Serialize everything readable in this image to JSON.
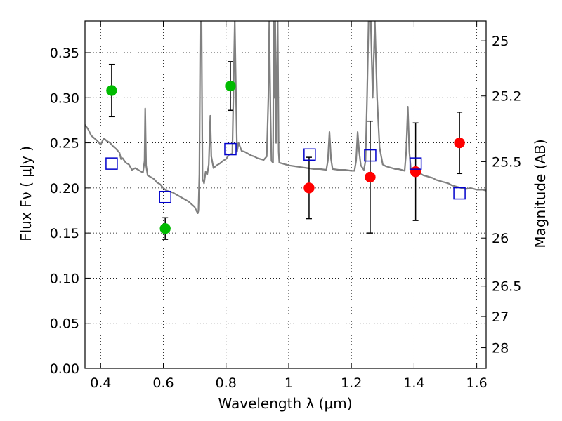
{
  "chart_data": {
    "type": "scatter",
    "title": "",
    "xlabel": "Wavelength  λ (μm)",
    "ylabel": "Flux  Fν  ( μJy )",
    "y2label": "Magnitude (AB)",
    "xlim": [
      0.35,
      1.63
    ],
    "ylim": [
      0.0,
      0.385
    ],
    "grid": true,
    "x_ticks": [
      0.4,
      0.6,
      0.8,
      1.0,
      1.2,
      1.4,
      1.6
    ],
    "x_tick_labels": [
      "0.4",
      "0.6",
      "0.8",
      "1",
      "1.2",
      "1.4",
      "1.6"
    ],
    "y_ticks": [
      0.0,
      0.05,
      0.1,
      0.15,
      0.2,
      0.25,
      0.3,
      0.35
    ],
    "y_tick_labels": [
      "0.00",
      "0.05",
      "0.10",
      "0.15",
      "0.20",
      "0.25",
      "0.30",
      "0.35"
    ],
    "y2_ticks": [
      {
        "label": "25",
        "flux": 0.3631
      },
      {
        "label": "25.2",
        "flux": 0.302
      },
      {
        "label": "25.5",
        "flux": 0.2291
      },
      {
        "label": "26",
        "flux": 0.1445
      },
      {
        "label": "26.5",
        "flux": 0.0912
      },
      {
        "label": "27",
        "flux": 0.0575
      },
      {
        "label": "28",
        "flux": 0.0229
      }
    ],
    "series": [
      {
        "marker": "circle",
        "color": "#00bb00",
        "points": [
          {
            "x": 0.435,
            "y": 0.308,
            "err": 0.029
          },
          {
            "x": 0.606,
            "y": 0.155,
            "err": 0.012
          },
          {
            "x": 0.814,
            "y": 0.313,
            "err": 0.027
          }
        ]
      },
      {
        "marker": "circle",
        "color": "#ff0000",
        "points": [
          {
            "x": 1.065,
            "y": 0.2,
            "err": 0.034
          },
          {
            "x": 1.26,
            "y": 0.212,
            "err": 0.062
          },
          {
            "x": 1.405,
            "y": 0.218,
            "err": 0.054
          },
          {
            "x": 1.545,
            "y": 0.25,
            "err": 0.034
          }
        ]
      },
      {
        "marker": "open-square",
        "color": "#0000cc",
        "points": [
          {
            "x": 0.435,
            "y": 0.227
          },
          {
            "x": 0.606,
            "y": 0.19
          },
          {
            "x": 0.814,
            "y": 0.243
          },
          {
            "x": 1.067,
            "y": 0.237
          },
          {
            "x": 1.26,
            "y": 0.236
          },
          {
            "x": 1.405,
            "y": 0.227
          },
          {
            "x": 1.545,
            "y": 0.194
          }
        ]
      }
    ],
    "model_spectrum": {
      "color": "#808080",
      "points": [
        [
          0.35,
          0.27
        ],
        [
          0.36,
          0.265
        ],
        [
          0.37,
          0.258
        ],
        [
          0.38,
          0.255
        ],
        [
          0.39,
          0.252
        ],
        [
          0.4,
          0.248
        ],
        [
          0.41,
          0.255
        ],
        [
          0.42,
          0.252
        ],
        [
          0.43,
          0.25
        ],
        [
          0.44,
          0.246
        ],
        [
          0.45,
          0.243
        ],
        [
          0.46,
          0.239
        ],
        [
          0.465,
          0.232
        ],
        [
          0.47,
          0.233
        ],
        [
          0.48,
          0.228
        ],
        [
          0.49,
          0.226
        ],
        [
          0.5,
          0.22
        ],
        [
          0.51,
          0.222
        ],
        [
          0.52,
          0.22
        ],
        [
          0.53,
          0.218
        ],
        [
          0.535,
          0.217
        ],
        [
          0.54,
          0.23
        ],
        [
          0.542,
          0.288
        ],
        [
          0.545,
          0.225
        ],
        [
          0.55,
          0.214
        ],
        [
          0.56,
          0.212
        ],
        [
          0.57,
          0.21
        ],
        [
          0.58,
          0.206
        ],
        [
          0.59,
          0.204
        ],
        [
          0.6,
          0.2
        ],
        [
          0.61,
          0.197
        ],
        [
          0.62,
          0.196
        ],
        [
          0.63,
          0.195
        ],
        [
          0.64,
          0.193
        ],
        [
          0.65,
          0.191
        ],
        [
          0.66,
          0.189
        ],
        [
          0.67,
          0.187
        ],
        [
          0.68,
          0.185
        ],
        [
          0.69,
          0.182
        ],
        [
          0.7,
          0.179
        ],
        [
          0.705,
          0.175
        ],
        [
          0.71,
          0.172
        ],
        [
          0.712,
          0.175
        ],
        [
          0.715,
          0.215
        ],
        [
          0.718,
          0.385
        ],
        [
          0.722,
          0.385
        ],
        [
          0.725,
          0.21
        ],
        [
          0.73,
          0.205
        ],
        [
          0.735,
          0.218
        ],
        [
          0.74,
          0.215
        ],
        [
          0.745,
          0.226
        ],
        [
          0.75,
          0.28
        ],
        [
          0.753,
          0.235
        ],
        [
          0.76,
          0.222
        ],
        [
          0.77,
          0.225
        ],
        [
          0.78,
          0.227
        ],
        [
          0.79,
          0.23
        ],
        [
          0.8,
          0.232
        ],
        [
          0.81,
          0.237
        ],
        [
          0.82,
          0.238
        ],
        [
          0.825,
          0.33
        ],
        [
          0.828,
          0.385
        ],
        [
          0.832,
          0.3
        ],
        [
          0.835,
          0.24
        ],
        [
          0.84,
          0.25
        ],
        [
          0.85,
          0.241
        ],
        [
          0.86,
          0.24
        ],
        [
          0.87,
          0.238
        ],
        [
          0.88,
          0.236
        ],
        [
          0.89,
          0.235
        ],
        [
          0.9,
          0.233
        ],
        [
          0.91,
          0.232
        ],
        [
          0.92,
          0.231
        ],
        [
          0.93,
          0.235
        ],
        [
          0.935,
          0.3
        ],
        [
          0.938,
          0.385
        ],
        [
          0.942,
          0.28
        ],
        [
          0.945,
          0.23
        ],
        [
          0.95,
          0.228
        ],
        [
          0.952,
          0.385
        ],
        [
          0.955,
          0.3
        ],
        [
          0.957,
          0.385
        ],
        [
          0.96,
          0.25
        ],
        [
          0.965,
          0.385
        ],
        [
          0.968,
          0.24
        ],
        [
          0.97,
          0.228
        ],
        [
          0.98,
          0.227
        ],
        [
          0.99,
          0.226
        ],
        [
          1.0,
          0.225
        ],
        [
          1.02,
          0.224
        ],
        [
          1.04,
          0.223
        ],
        [
          1.06,
          0.222
        ],
        [
          1.08,
          0.221
        ],
        [
          1.1,
          0.221
        ],
        [
          1.12,
          0.22
        ],
        [
          1.125,
          0.23
        ],
        [
          1.13,
          0.262
        ],
        [
          1.135,
          0.232
        ],
        [
          1.14,
          0.221
        ],
        [
          1.16,
          0.22
        ],
        [
          1.18,
          0.22
        ],
        [
          1.2,
          0.219
        ],
        [
          1.21,
          0.219
        ],
        [
          1.215,
          0.23
        ],
        [
          1.22,
          0.262
        ],
        [
          1.225,
          0.24
        ],
        [
          1.23,
          0.225
        ],
        [
          1.24,
          0.22
        ],
        [
          1.245,
          0.23
        ],
        [
          1.25,
          0.3
        ],
        [
          1.255,
          0.385
        ],
        [
          1.262,
          0.385
        ],
        [
          1.268,
          0.3
        ],
        [
          1.275,
          0.385
        ],
        [
          1.282,
          0.3
        ],
        [
          1.29,
          0.245
        ],
        [
          1.3,
          0.226
        ],
        [
          1.31,
          0.224
        ],
        [
          1.32,
          0.223
        ],
        [
          1.33,
          0.222
        ],
        [
          1.34,
          0.221
        ],
        [
          1.35,
          0.221
        ],
        [
          1.36,
          0.22
        ],
        [
          1.37,
          0.219
        ],
        [
          1.375,
          0.24
        ],
        [
          1.38,
          0.29
        ],
        [
          1.385,
          0.24
        ],
        [
          1.39,
          0.22
        ],
        [
          1.4,
          0.218
        ],
        [
          1.41,
          0.217
        ],
        [
          1.42,
          0.216
        ],
        [
          1.43,
          0.214
        ],
        [
          1.44,
          0.213
        ],
        [
          1.45,
          0.212
        ],
        [
          1.46,
          0.211
        ],
        [
          1.47,
          0.209
        ],
        [
          1.48,
          0.208
        ],
        [
          1.49,
          0.207
        ],
        [
          1.5,
          0.206
        ],
        [
          1.51,
          0.205
        ],
        [
          1.52,
          0.203
        ],
        [
          1.53,
          0.202
        ],
        [
          1.54,
          0.201
        ],
        [
          1.55,
          0.2
        ],
        [
          1.56,
          0.199
        ],
        [
          1.57,
          0.199
        ],
        [
          1.58,
          0.2
        ],
        [
          1.59,
          0.199
        ],
        [
          1.6,
          0.198
        ],
        [
          1.61,
          0.198
        ],
        [
          1.62,
          0.198
        ],
        [
          1.63,
          0.197
        ]
      ]
    }
  }
}
